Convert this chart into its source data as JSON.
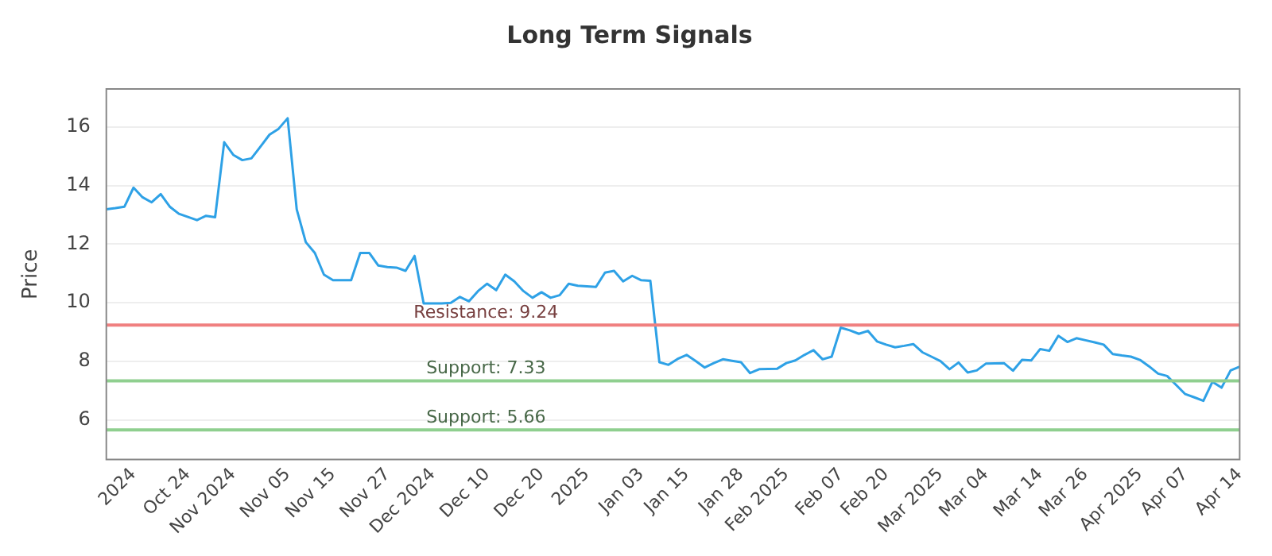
{
  "chart_data": {
    "type": "line",
    "title": "Long Term Signals",
    "ylabel": "Price",
    "categories": [
      null,
      null,
      null,
      "2024",
      null,
      null,
      null,
      null,
      null,
      "Oct 24",
      null,
      null,
      null,
      null,
      "Nov 2024",
      null,
      null,
      null,
      null,
      null,
      "Nov 05",
      null,
      null,
      null,
      null,
      "Nov 15",
      null,
      null,
      null,
      null,
      null,
      "Nov 27",
      null,
      null,
      null,
      null,
      "Dec 2024",
      null,
      null,
      null,
      null,
      null,
      "Dec 10",
      null,
      null,
      null,
      null,
      null,
      "Dec 20",
      null,
      null,
      null,
      null,
      "2025",
      null,
      null,
      null,
      null,
      null,
      "Jan 03",
      null,
      null,
      null,
      null,
      "Jan 15",
      null,
      null,
      null,
      null,
      null,
      "Jan 28",
      null,
      null,
      null,
      null,
      "Feb 2025",
      null,
      null,
      null,
      null,
      null,
      "Feb 07",
      null,
      null,
      null,
      null,
      "Feb 20",
      null,
      null,
      null,
      null,
      null,
      "Mar 2025",
      null,
      null,
      null,
      null,
      "Mar 04",
      null,
      null,
      null,
      null,
      null,
      "Mar 14",
      null,
      null,
      null,
      null,
      "Mar 26",
      null,
      null,
      null,
      null,
      null,
      "Apr 2025",
      null,
      null,
      null,
      null,
      "Apr 07",
      null,
      null,
      null,
      null,
      null,
      "Apr 14"
    ],
    "series": [
      {
        "color": "#2ea1e6",
        "values": [
          13.19,
          13.23,
          13.28,
          13.93,
          13.6,
          13.43,
          13.71,
          13.28,
          13.04,
          12.93,
          12.82,
          12.97,
          12.92,
          15.48,
          15.05,
          14.87,
          14.93,
          15.33,
          15.74,
          15.94,
          16.3,
          13.19,
          12.07,
          11.7,
          10.96,
          10.77,
          10.77,
          10.77,
          11.7,
          11.7,
          11.27,
          11.22,
          11.2,
          11.09,
          11.6,
          9.98,
          9.98,
          9.98,
          10.0,
          10.2,
          10.05,
          10.4,
          10.65,
          10.43,
          10.96,
          10.73,
          10.4,
          10.17,
          10.36,
          10.17,
          10.26,
          10.65,
          10.58,
          10.56,
          10.54,
          11.03,
          11.09,
          10.73,
          10.92,
          10.77,
          10.75,
          7.97,
          7.88,
          8.08,
          8.22,
          8.01,
          7.79,
          7.94,
          8.07,
          8.02,
          7.97,
          7.6,
          7.73,
          7.74,
          7.75,
          7.94,
          8.03,
          8.22,
          8.38,
          8.07,
          8.16,
          9.15,
          9.06,
          8.94,
          9.04,
          8.68,
          8.57,
          8.48,
          8.53,
          8.59,
          8.31,
          8.16,
          8.01,
          7.73,
          7.96,
          7.62,
          7.69,
          7.92,
          7.93,
          7.94,
          7.68,
          8.05,
          8.03,
          8.42,
          8.36,
          8.87,
          8.66,
          8.79,
          8.72,
          8.65,
          8.57,
          8.25,
          8.2,
          8.16,
          8.05,
          7.83,
          7.58,
          7.5,
          7.19,
          6.88,
          6.77,
          6.65,
          7.3,
          7.1,
          7.69,
          7.82
        ]
      }
    ],
    "ylim": [
      4.65,
      17.3
    ],
    "yticks": [
      6,
      8,
      10,
      12,
      14,
      16
    ],
    "grid": "y",
    "legend": false,
    "marker": "none",
    "line_style": "solid",
    "ref_lines": [
      {
        "axis": "y",
        "value": 9.24,
        "label": "Resistance: 9.24",
        "color": "#f08080"
      },
      {
        "axis": "y",
        "value": 7.33,
        "label": "Support: 7.33",
        "color": "#8fcf8f"
      },
      {
        "axis": "y",
        "value": 5.66,
        "label": "Support: 5.66",
        "color": "#8fcf8f"
      }
    ]
  }
}
